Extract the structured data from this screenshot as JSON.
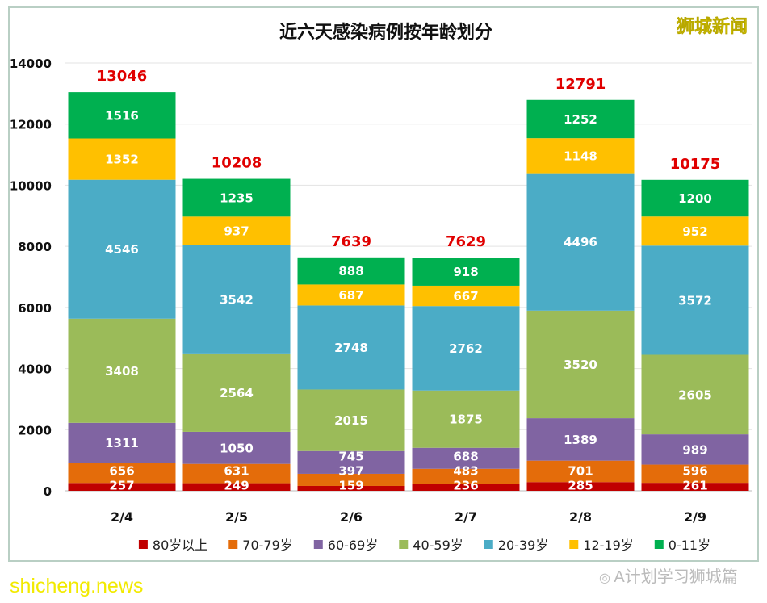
{
  "logo_text": "狮城新闻",
  "watermarks": {
    "site": "shicheng.news",
    "wechat": "A计划学习狮城篇"
  },
  "colors": {
    "80岁以上": "#c00000",
    "70-79岁": "#e46c0a",
    "60-69岁": "#8064a2",
    "40-59岁": "#9bbb59",
    "20-39岁": "#4bacc6",
    "12-19岁": "#ffc000",
    "0-11岁": "#00b050",
    "total_label": "#e00000"
  },
  "chart_data": {
    "type": "bar",
    "stacked": true,
    "title": "近六天感染病例按年龄划分",
    "xlabel": "",
    "ylabel": "",
    "ylim": [
      0,
      14000
    ],
    "yticks": [
      0,
      2000,
      4000,
      6000,
      8000,
      10000,
      12000,
      14000
    ],
    "grid": true,
    "legend_position": "bottom",
    "categories": [
      "2/4",
      "2/5",
      "2/6",
      "2/7",
      "2/8",
      "2/9"
    ],
    "totals": [
      13046,
      10208,
      7639,
      7629,
      12791,
      10175
    ],
    "series": [
      {
        "name": "80岁以上",
        "values": [
          257,
          249,
          159,
          236,
          285,
          261
        ]
      },
      {
        "name": "70-79岁",
        "values": [
          656,
          631,
          397,
          483,
          701,
          596
        ]
      },
      {
        "name": "60-69岁",
        "values": [
          1311,
          1050,
          745,
          688,
          1389,
          989
        ]
      },
      {
        "name": "40-59岁",
        "values": [
          3408,
          2564,
          2015,
          1875,
          3520,
          2605
        ]
      },
      {
        "name": "20-39岁",
        "values": [
          4546,
          3542,
          2748,
          2762,
          4496,
          3572
        ]
      },
      {
        "name": "12-19岁",
        "values": [
          1352,
          937,
          687,
          667,
          1148,
          952
        ]
      },
      {
        "name": "0-11岁",
        "values": [
          1516,
          1235,
          888,
          918,
          1252,
          1200
        ]
      }
    ]
  }
}
